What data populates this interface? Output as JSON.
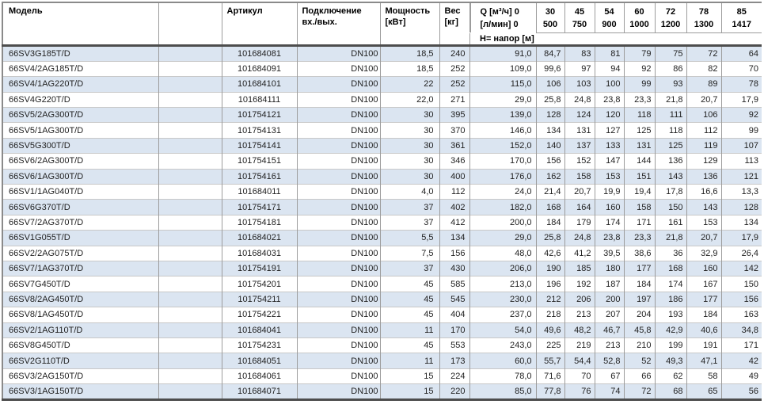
{
  "header": {
    "model": "Модель",
    "article": "Артикул",
    "connection_line1": "Подключение",
    "connection_line2": "вх./вых.",
    "power_line1": "Мощность",
    "power_line2": "[кВт]",
    "weight_line1": "Вес",
    "weight_line2": "[кг]",
    "q_line1": "Q [м³/ч] 0",
    "q_line2": "[л/мин] 0",
    "head_label": "H= напор [м]",
    "flow_columns": [
      {
        "m3h": "30",
        "lmin": "500"
      },
      {
        "m3h": "45",
        "lmin": "750"
      },
      {
        "m3h": "54",
        "lmin": "900"
      },
      {
        "m3h": "60",
        "lmin": "1000"
      },
      {
        "m3h": "72",
        "lmin": "1200"
      },
      {
        "m3h": "78",
        "lmin": "1300"
      },
      {
        "m3h": "85",
        "lmin": "1417"
      }
    ]
  },
  "colors": {
    "stripe": "#dbe5f1",
    "cell_border": "#9c9c9c",
    "row_border": "#c8c8c8",
    "thick_border": "#4d4d4d"
  },
  "rows": [
    {
      "model": "66SV3G185T/D",
      "article": "101684081",
      "connection": "DN100",
      "power": "18,5",
      "weight": "240",
      "h0": "91,0",
      "h": [
        "84,7",
        "83",
        "81",
        "79",
        "75",
        "72",
        "64"
      ]
    },
    {
      "model": "66SV4/2AG185T/D",
      "article": "101684091",
      "connection": "DN100",
      "power": "18,5",
      "weight": "252",
      "h0": "109,0",
      "h": [
        "99,6",
        "97",
        "94",
        "92",
        "86",
        "82",
        "70"
      ]
    },
    {
      "model": "66SV4/1AG220T/D",
      "article": "101684101",
      "connection": "DN100",
      "power": "22",
      "weight": "252",
      "h0": "115,0",
      "h": [
        "106",
        "103",
        "100",
        "99",
        "93",
        "89",
        "78"
      ]
    },
    {
      "model": "66SV4G220T/D",
      "article": "101684111",
      "connection": "DN100",
      "power": "22,0",
      "weight": "271",
      "h0": "29,0",
      "h": [
        "25,8",
        "24,8",
        "23,8",
        "23,3",
        "21,8",
        "20,7",
        "17,9"
      ]
    },
    {
      "model": "66SV5/2AG300T/D",
      "article": "101754121",
      "connection": "DN100",
      "power": "30",
      "weight": "395",
      "h0": "139,0",
      "h": [
        "128",
        "124",
        "120",
        "118",
        "111",
        "106",
        "92"
      ]
    },
    {
      "model": "66SV5/1AG300T/D",
      "article": "101754131",
      "connection": "DN100",
      "power": "30",
      "weight": "370",
      "h0": "146,0",
      "h": [
        "134",
        "131",
        "127",
        "125",
        "118",
        "112",
        "99"
      ]
    },
    {
      "model": "66SV5G300T/D",
      "article": "101754141",
      "connection": "DN100",
      "power": "30",
      "weight": "361",
      "h0": "152,0",
      "h": [
        "140",
        "137",
        "133",
        "131",
        "125",
        "119",
        "107"
      ]
    },
    {
      "model": "66SV6/2AG300T/D",
      "article": "101754151",
      "connection": "DN100",
      "power": "30",
      "weight": "346",
      "h0": "170,0",
      "h": [
        "156",
        "152",
        "147",
        "144",
        "136",
        "129",
        "113"
      ]
    },
    {
      "model": "66SV6/1AG300T/D",
      "article": "101754161",
      "connection": "DN100",
      "power": "30",
      "weight": "400",
      "h0": "176,0",
      "h": [
        "162",
        "158",
        "153",
        "151",
        "143",
        "136",
        "121"
      ]
    },
    {
      "model": "66SV1/1AG040T/D",
      "article": "101684011",
      "connection": "DN100",
      "power": "4,0",
      "weight": "112",
      "h0": "24,0",
      "h": [
        "21,4",
        "20,7",
        "19,9",
        "19,4",
        "17,8",
        "16,6",
        "13,3"
      ]
    },
    {
      "model": "66SV6G370T/D",
      "article": "101754171",
      "connection": "DN100",
      "power": "37",
      "weight": "402",
      "h0": "182,0",
      "h": [
        "168",
        "164",
        "160",
        "158",
        "150",
        "143",
        "128"
      ]
    },
    {
      "model": "66SV7/2AG370T/D",
      "article": "101754181",
      "connection": "DN100",
      "power": "37",
      "weight": "412",
      "h0": "200,0",
      "h": [
        "184",
        "179",
        "174",
        "171",
        "161",
        "153",
        "134"
      ]
    },
    {
      "model": "66SV1G055T/D",
      "article": "101684021",
      "connection": "DN100",
      "power": "5,5",
      "weight": "134",
      "h0": "29,0",
      "h": [
        "25,8",
        "24,8",
        "23,8",
        "23,3",
        "21,8",
        "20,7",
        "17,9"
      ]
    },
    {
      "model": "66SV2/2AG075T/D",
      "article": "101684031",
      "connection": "DN100",
      "power": "7,5",
      "weight": "156",
      "h0": "48,0",
      "h": [
        "42,6",
        "41,2",
        "39,5",
        "38,6",
        "36",
        "32,9",
        "26,4"
      ]
    },
    {
      "model": "66SV7/1AG370T/D",
      "article": "101754191",
      "connection": "DN100",
      "power": "37",
      "weight": "430",
      "h0": "206,0",
      "h": [
        "190",
        "185",
        "180",
        "177",
        "168",
        "160",
        "142"
      ]
    },
    {
      "model": "66SV7G450T/D",
      "article": "101754201",
      "connection": "DN100",
      "power": "45",
      "weight": "585",
      "h0": "213,0",
      "h": [
        "196",
        "192",
        "187",
        "184",
        "174",
        "167",
        "150"
      ]
    },
    {
      "model": "66SV8/2AG450T/D",
      "article": "101754211",
      "connection": "DN100",
      "power": "45",
      "weight": "545",
      "h0": "230,0",
      "h": [
        "212",
        "206",
        "200",
        "197",
        "186",
        "177",
        "156"
      ]
    },
    {
      "model": "66SV8/1AG450T/D",
      "article": "101754221",
      "connection": "DN100",
      "power": "45",
      "weight": "404",
      "h0": "237,0",
      "h": [
        "218",
        "213",
        "207",
        "204",
        "193",
        "184",
        "163"
      ]
    },
    {
      "model": "66SV2/1AG110T/D",
      "article": "101684041",
      "connection": "DN100",
      "power": "11",
      "weight": "170",
      "h0": "54,0",
      "h": [
        "49,6",
        "48,2",
        "46,7",
        "45,8",
        "42,9",
        "40,6",
        "34,8"
      ]
    },
    {
      "model": "66SV8G450T/D",
      "article": "101754231",
      "connection": "DN100",
      "power": "45",
      "weight": "553",
      "h0": "243,0",
      "h": [
        "225",
        "219",
        "213",
        "210",
        "199",
        "191",
        "171"
      ]
    },
    {
      "model": "66SV2G110T/D",
      "article": "101684051",
      "connection": "DN100",
      "power": "11",
      "weight": "173",
      "h0": "60,0",
      "h": [
        "55,7",
        "54,4",
        "52,8",
        "52",
        "49,3",
        "47,1",
        "42"
      ]
    },
    {
      "model": "66SV3/2AG150T/D",
      "article": "101684061",
      "connection": "DN100",
      "power": "15",
      "weight": "224",
      "h0": "78,0",
      "h": [
        "71,6",
        "70",
        "67",
        "66",
        "62",
        "58",
        "49"
      ]
    },
    {
      "model": "66SV3/1AG150T/D",
      "article": "101684071",
      "connection": "DN100",
      "power": "15",
      "weight": "220",
      "h0": "85,0",
      "h": [
        "77,8",
        "76",
        "74",
        "72",
        "68",
        "65",
        "56"
      ]
    }
  ]
}
